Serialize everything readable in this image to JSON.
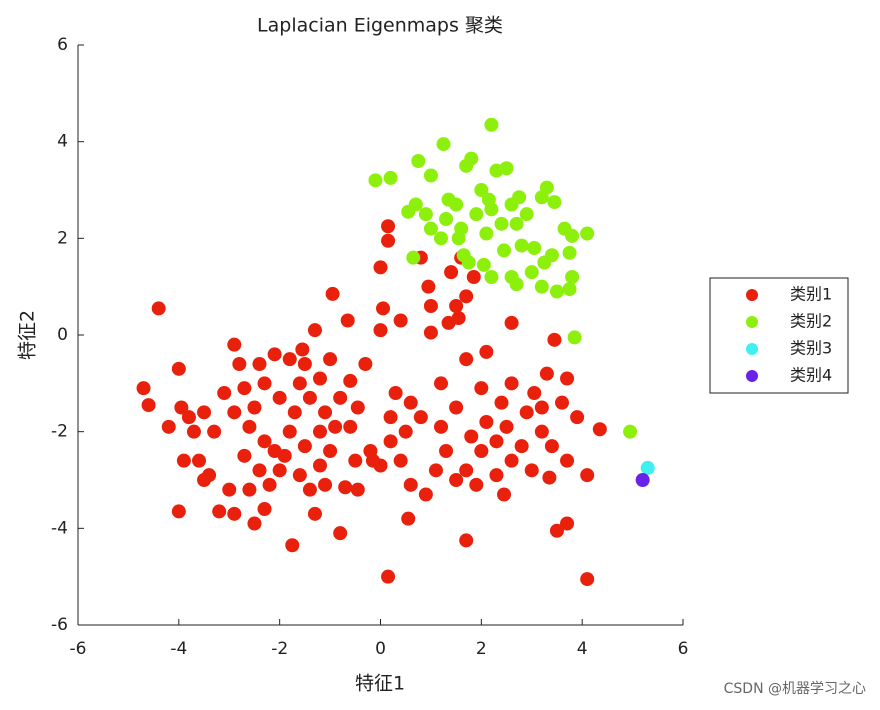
{
  "chart_data": {
    "type": "scatter",
    "title": "Laplacian Eigenmaps 聚类",
    "xlabel": "特征1",
    "ylabel": "特征2",
    "xlim": [
      -6,
      6
    ],
    "ylim": [
      -6,
      6
    ],
    "xticks": [
      -6,
      -4,
      -2,
      0,
      2,
      4,
      6
    ],
    "yticks": [
      -6,
      -4,
      -2,
      0,
      2,
      4,
      6
    ],
    "legend": "right",
    "series": [
      {
        "name": "类别1",
        "color": "#e8200c",
        "x": [
          -4.4,
          -4.7,
          -4.6,
          -4,
          -4,
          -0.95,
          0.15,
          4.1,
          3.7,
          3.5,
          4.35,
          4.1,
          -1.75,
          1.7,
          0.55,
          -0.8,
          0.15,
          0.15,
          0,
          0.05,
          0,
          0.4,
          0.8,
          0.95,
          1,
          1,
          1.35,
          1.4,
          1.6,
          1.5,
          1.7,
          1.85,
          1.55,
          2.6,
          3.45,
          3.05,
          -0.65,
          -0.3,
          -1,
          -3.8,
          -3.5,
          -3.3,
          -3.6,
          -3.4,
          -3,
          -2.9,
          -3.2,
          -2.5,
          -2.3,
          -2.6,
          -2.2,
          -2,
          -1.9,
          -1.6,
          -1.4,
          -1.3,
          -1.1,
          -0.7,
          -0.45,
          -0.5,
          -0.15,
          -0.6,
          -0.45,
          -0.8,
          -0.6,
          -1.2,
          -1.5,
          -1.8,
          -2.1,
          -2.4,
          -2.8,
          -2.9,
          -2.7,
          -3.1,
          -2.9,
          -2.6,
          -2.3,
          -2.7,
          -2.4,
          -2.1,
          -1.8,
          -1.5,
          -1.2,
          -1,
          -1.2,
          -1.7,
          -2,
          -2.3,
          -2.5,
          -1.4,
          -1.1,
          -0.9,
          -1.6,
          -1.3,
          -1.55,
          -3.7,
          -4.2,
          -3.95,
          -3.9,
          -3.5,
          0.3,
          0.6,
          0.8,
          0.5,
          0.2,
          0.4,
          0.6,
          0.9,
          1.1,
          1.3,
          1.2,
          1.5,
          1.2,
          1.7,
          2.1,
          2,
          2.4,
          2.1,
          1.8,
          2,
          2.3,
          2.5,
          2.6,
          2.3,
          2.45,
          1.7,
          1.5,
          1.9,
          2.8,
          2.9,
          2.6,
          3.2,
          3.3,
          3.6,
          3.2,
          3.4,
          3,
          3.7,
          3.9,
          3.7,
          0,
          0.2,
          -0.2,
          3.35
        ],
        "y": [
          0.55,
          -1.1,
          -1.45,
          -0.7,
          -3.65,
          0.85,
          -5,
          -5.05,
          -3.9,
          -4.05,
          -1.95,
          -2.9,
          -4.35,
          -4.25,
          -3.8,
          -4.1,
          2.25,
          1.95,
          1.4,
          0.55,
          0.1,
          0.3,
          1.6,
          1,
          0.6,
          0.05,
          0.25,
          1.3,
          1.6,
          0.6,
          0.8,
          1.2,
          0.35,
          0.25,
          -0.1,
          -1.2,
          0.3,
          -0.6,
          -0.5,
          -1.7,
          -1.6,
          -2,
          -2.6,
          -2.9,
          -3.2,
          -3.7,
          -3.65,
          -3.9,
          -3.6,
          -3.2,
          -3.1,
          -2.8,
          -2.5,
          -2.9,
          -3.2,
          -3.7,
          -3.1,
          -3.15,
          -3.2,
          -2.6,
          -2.6,
          -1.9,
          -1.5,
          -1.3,
          -0.95,
          -0.9,
          -0.6,
          -0.5,
          -0.4,
          -0.6,
          -0.6,
          -0.2,
          -1.1,
          -1.2,
          -1.6,
          -1.9,
          -2.2,
          -2.5,
          -2.8,
          -2.4,
          -2,
          -2.3,
          -2,
          -2.4,
          -2.7,
          -1.6,
          -1.3,
          -1,
          -1.5,
          -1.3,
          -1.6,
          -1.9,
          -1,
          0.1,
          -0.3,
          -2,
          -1.9,
          -1.5,
          -2.6,
          -3,
          -1.2,
          -1.4,
          -1.7,
          -2,
          -2.2,
          -2.6,
          -3.1,
          -3.3,
          -2.8,
          -2.4,
          -1.9,
          -1.5,
          -1,
          -0.5,
          -0.35,
          -1.1,
          -1.4,
          -1.8,
          -2.1,
          -2.4,
          -2.2,
          -1.9,
          -2.6,
          -2.9,
          -3.3,
          -2.8,
          -3,
          -3.1,
          -2.3,
          -1.6,
          -1,
          -1.5,
          -0.8,
          -1.4,
          -2,
          -2.3,
          -2.8,
          -2.6,
          -1.7,
          -0.9,
          -2.7,
          -1.7,
          -2.4,
          -2.95
        ]
      },
      {
        "name": "类别2",
        "color": "#8cf00c",
        "x": [
          -0.1,
          0.2,
          0.55,
          0.7,
          0.75,
          1,
          1.25,
          0.9,
          1,
          1.3,
          1.5,
          1.7,
          1.8,
          2,
          1.6,
          1.9,
          2.1,
          2.2,
          2.4,
          2.2,
          2.5,
          2.3,
          2.6,
          2.7,
          2.9,
          1.2,
          1.65,
          1.75,
          2.05,
          2.2,
          0.65,
          2.6,
          2.7,
          3,
          3.25,
          3.4,
          3.2,
          3.5,
          3.75,
          3.45,
          3.2,
          3.3,
          3.8,
          3.75,
          3.65,
          4.1,
          3.8,
          3.85,
          4.95,
          1.35,
          1.55,
          2.8,
          3.05,
          2.45,
          2.15,
          2.75
        ],
        "y": [
          3.2,
          3.25,
          2.55,
          2.7,
          3.6,
          3.3,
          3.95,
          2.5,
          2.2,
          2.4,
          2.7,
          3.5,
          3.65,
          3,
          2.2,
          2.5,
          2.1,
          2.6,
          2.3,
          4.35,
          3.45,
          3.4,
          2.7,
          2.3,
          2.5,
          2,
          1.65,
          1.5,
          1.45,
          1.2,
          1.6,
          1.2,
          1.05,
          1.3,
          1.5,
          1.65,
          1,
          0.9,
          0.95,
          2.75,
          2.85,
          3.05,
          2.05,
          1.7,
          2.2,
          2.1,
          1.2,
          -0.05,
          -2,
          2.8,
          2,
          1.85,
          1.8,
          1.75,
          2.8,
          2.85
        ]
      },
      {
        "name": "类别3",
        "color": "#3ef0f0",
        "x": [
          5.3
        ],
        "y": [
          -2.75
        ]
      },
      {
        "name": "类别4",
        "color": "#6a22e8",
        "x": [
          5.2
        ],
        "y": [
          -3
        ]
      }
    ]
  },
  "watermark": "CSDN @机器学习之心"
}
